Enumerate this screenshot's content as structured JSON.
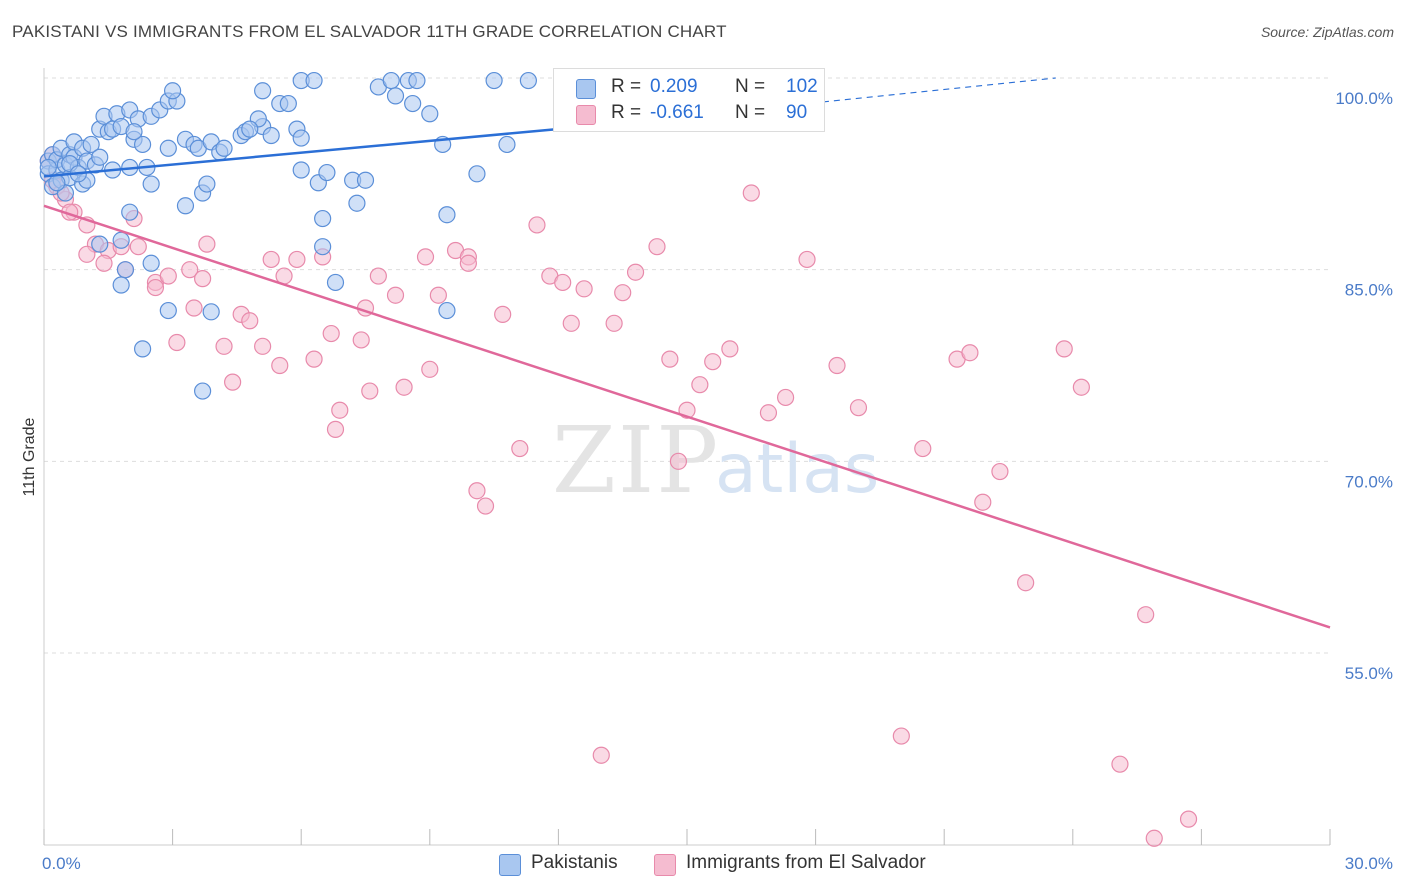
{
  "title": "PAKISTANI VS IMMIGRANTS FROM EL SALVADOR 11TH GRADE CORRELATION CHART",
  "source": "Source: ZipAtlas.com",
  "watermark": {
    "zip": "ZIP",
    "atlas": "atlas"
  },
  "legend": {
    "series1": {
      "r_label": "R =",
      "r_value": "0.209",
      "n_label": "N =",
      "n_value": "102"
    },
    "series2": {
      "r_label": "R =",
      "r_value": "-0.661",
      "n_label": "N =",
      "n_value": "90"
    }
  },
  "bottom_legend": {
    "series1": "Pakistanis",
    "series2": "Immigrants from El Salvador"
  },
  "colors": {
    "blue_fill": "#a9c7f0",
    "blue_stroke": "#5b8fd8",
    "blue_line": "#2b6fd6",
    "pink_fill": "#f5bcd0",
    "pink_stroke": "#e88aab",
    "pink_line": "#e0689a",
    "grid": "#dddddd",
    "tick_text": "#4a7bc8"
  },
  "chart_data": {
    "type": "scatter",
    "title": "PAKISTANI VS IMMIGRANTS FROM EL SALVADOR 11TH GRADE CORRELATION CHART",
    "xlabel": "",
    "ylabel": "11th Grade",
    "xlim": [
      0,
      30
    ],
    "ylim": [
      40.5,
      101.5
    ],
    "x_tick_labels": [
      "0.0%",
      "30.0%"
    ],
    "y_ticks": [
      100,
      85,
      70,
      55
    ],
    "y_tick_labels": [
      "100.0%",
      "85.0%",
      "70.0%",
      "55.0%"
    ],
    "grid": true,
    "series": [
      {
        "name": "Pakistanis",
        "r": 0.209,
        "n": 102,
        "trend": {
          "x0": 0,
          "y0": 92.3,
          "x1": 12.3,
          "y1": 96.1,
          "dash_x1": 23.6,
          "dash_y1": 100
        },
        "points": [
          [
            0.1,
            93.5
          ],
          [
            0.1,
            92.5
          ],
          [
            0.2,
            91.5
          ],
          [
            0.2,
            94.0
          ],
          [
            0.3,
            92.8
          ],
          [
            0.3,
            93.6
          ],
          [
            0.4,
            92.0
          ],
          [
            0.4,
            94.5
          ],
          [
            0.5,
            93.2
          ],
          [
            0.5,
            91.0
          ],
          [
            0.6,
            94.0
          ],
          [
            0.6,
            92.2
          ],
          [
            0.7,
            93.8
          ],
          [
            0.7,
            95.0
          ],
          [
            0.8,
            93.0
          ],
          [
            0.9,
            94.5
          ],
          [
            1.0,
            93.5
          ],
          [
            1.1,
            94.8
          ],
          [
            1.2,
            93.2
          ],
          [
            1.3,
            93.8
          ],
          [
            1.3,
            96.0
          ],
          [
            1.4,
            97.0
          ],
          [
            1.5,
            95.8
          ],
          [
            1.6,
            96.0
          ],
          [
            1.7,
            97.2
          ],
          [
            1.8,
            96.2
          ],
          [
            2.0,
            97.5
          ],
          [
            2.1,
            95.2
          ],
          [
            2.2,
            96.8
          ],
          [
            2.3,
            94.8
          ],
          [
            2.4,
            93.0
          ],
          [
            2.5,
            97.0
          ],
          [
            2.7,
            97.5
          ],
          [
            2.9,
            98.2
          ],
          [
            3.1,
            98.2
          ],
          [
            3.3,
            95.2
          ],
          [
            3.5,
            94.8
          ],
          [
            3.6,
            94.5
          ],
          [
            3.9,
            95.0
          ],
          [
            4.1,
            94.2
          ],
          [
            4.2,
            94.5
          ],
          [
            4.6,
            95.5
          ],
          [
            4.7,
            95.8
          ],
          [
            5.1,
            96.2
          ],
          [
            5.0,
            96.8
          ],
          [
            5.3,
            95.5
          ],
          [
            5.5,
            98.0
          ],
          [
            5.7,
            98.0
          ],
          [
            5.9,
            96.0
          ],
          [
            6.0,
            95.3
          ],
          [
            6.0,
            99.8
          ],
          [
            6.3,
            99.8
          ],
          [
            6.4,
            91.8
          ],
          [
            6.5,
            89.0
          ],
          [
            6.5,
            86.8
          ],
          [
            6.6,
            92.6
          ],
          [
            6.8,
            84.0
          ],
          [
            7.2,
            92.0
          ],
          [
            7.3,
            90.2
          ],
          [
            7.5,
            92.0
          ],
          [
            7.8,
            99.3
          ],
          [
            8.1,
            99.8
          ],
          [
            8.2,
            98.6
          ],
          [
            8.5,
            99.8
          ],
          [
            8.6,
            98.0
          ],
          [
            8.7,
            99.8
          ],
          [
            9.0,
            97.2
          ],
          [
            9.3,
            94.8
          ],
          [
            9.4,
            89.3
          ],
          [
            10.1,
            92.5
          ],
          [
            10.5,
            99.8
          ],
          [
            10.8,
            94.8
          ],
          [
            11.3,
            99.8
          ],
          [
            2.5,
            91.7
          ],
          [
            2.0,
            93.0
          ],
          [
            3.0,
            99.0
          ],
          [
            3.3,
            90.0
          ],
          [
            3.7,
            91.0
          ],
          [
            2.9,
            94.5
          ],
          [
            0.9,
            91.7
          ],
          [
            1.6,
            92.8
          ],
          [
            1.0,
            92.0
          ],
          [
            2.1,
            95.8
          ],
          [
            3.8,
            91.7
          ],
          [
            2.0,
            89.5
          ],
          [
            1.3,
            87.0
          ],
          [
            1.8,
            87.3
          ],
          [
            2.5,
            85.5
          ],
          [
            1.8,
            83.8
          ],
          [
            2.9,
            81.8
          ],
          [
            3.9,
            81.7
          ],
          [
            2.3,
            78.8
          ],
          [
            3.7,
            75.5
          ],
          [
            6.0,
            92.8
          ],
          [
            4.8,
            96.0
          ],
          [
            5.1,
            99.0
          ],
          [
            0.3,
            91.8
          ],
          [
            0.6,
            93.3
          ],
          [
            0.8,
            92.5
          ],
          [
            0.1,
            93.0
          ],
          [
            9.4,
            81.8
          ],
          [
            1.9,
            85.0
          ]
        ]
      },
      {
        "name": "Immigrants from El Salvador",
        "r": -0.661,
        "n": 90,
        "trend": {
          "x0": 0,
          "y0": 90.0,
          "x1": 30,
          "y1": 57.0
        },
        "points": [
          [
            0.1,
            93.5
          ],
          [
            0.2,
            92.0
          ],
          [
            0.3,
            91.5
          ],
          [
            0.5,
            90.5
          ],
          [
            0.7,
            89.5
          ],
          [
            1.0,
            88.5
          ],
          [
            1.2,
            87.0
          ],
          [
            1.5,
            86.5
          ],
          [
            1.9,
            85.0
          ],
          [
            2.1,
            89.0
          ],
          [
            2.2,
            86.8
          ],
          [
            2.6,
            84.0
          ],
          [
            2.9,
            84.5
          ],
          [
            3.4,
            85.0
          ],
          [
            3.5,
            82.0
          ],
          [
            3.7,
            84.3
          ],
          [
            3.8,
            87.0
          ],
          [
            4.2,
            79.0
          ],
          [
            4.4,
            76.2
          ],
          [
            4.6,
            81.5
          ],
          [
            4.8,
            81.0
          ],
          [
            5.3,
            85.8
          ],
          [
            5.5,
            77.5
          ],
          [
            5.6,
            84.5
          ],
          [
            5.9,
            85.8
          ],
          [
            6.3,
            78.0
          ],
          [
            6.5,
            86.0
          ],
          [
            6.8,
            72.5
          ],
          [
            6.9,
            74.0
          ],
          [
            7.4,
            79.5
          ],
          [
            7.5,
            82.0
          ],
          [
            7.6,
            75.5
          ],
          [
            7.8,
            84.5
          ],
          [
            8.2,
            83.0
          ],
          [
            8.4,
            75.8
          ],
          [
            8.9,
            86.0
          ],
          [
            9.0,
            77.2
          ],
          [
            9.2,
            83.0
          ],
          [
            9.6,
            86.5
          ],
          [
            9.9,
            86.0
          ],
          [
            10.1,
            67.7
          ],
          [
            10.3,
            66.5
          ],
          [
            10.7,
            81.5
          ],
          [
            11.1,
            71.0
          ],
          [
            11.5,
            88.5
          ],
          [
            11.8,
            84.5
          ],
          [
            12.1,
            84.0
          ],
          [
            12.3,
            80.8
          ],
          [
            12.6,
            83.5
          ],
          [
            13.0,
            47.0
          ],
          [
            13.3,
            80.8
          ],
          [
            13.5,
            83.2
          ],
          [
            13.8,
            84.8
          ],
          [
            14.3,
            86.8
          ],
          [
            14.6,
            78.0
          ],
          [
            15.0,
            74.0
          ],
          [
            15.3,
            76.0
          ],
          [
            15.6,
            77.8
          ],
          [
            16.0,
            78.8
          ],
          [
            16.5,
            91.0
          ],
          [
            16.9,
            73.8
          ],
          [
            17.3,
            75.0
          ],
          [
            17.8,
            85.8
          ],
          [
            18.5,
            77.5
          ],
          [
            19.0,
            74.2
          ],
          [
            20.0,
            48.5
          ],
          [
            20.5,
            71.0
          ],
          [
            21.3,
            78.0
          ],
          [
            21.6,
            78.5
          ],
          [
            21.9,
            66.8
          ],
          [
            22.3,
            69.2
          ],
          [
            22.9,
            60.5
          ],
          [
            23.8,
            78.8
          ],
          [
            24.2,
            75.8
          ],
          [
            25.1,
            46.3
          ],
          [
            25.7,
            58.0
          ],
          [
            25.9,
            40.5
          ],
          [
            26.7,
            42.0
          ],
          [
            3.1,
            79.3
          ],
          [
            2.6,
            83.6
          ],
          [
            1.8,
            86.8
          ],
          [
            1.0,
            86.2
          ],
          [
            1.4,
            85.5
          ],
          [
            0.6,
            89.5
          ],
          [
            0.2,
            94.0
          ],
          [
            0.4,
            91.0
          ],
          [
            5.1,
            79.0
          ],
          [
            6.7,
            80.0
          ],
          [
            9.9,
            85.5
          ],
          [
            14.8,
            70.0
          ]
        ]
      }
    ]
  }
}
